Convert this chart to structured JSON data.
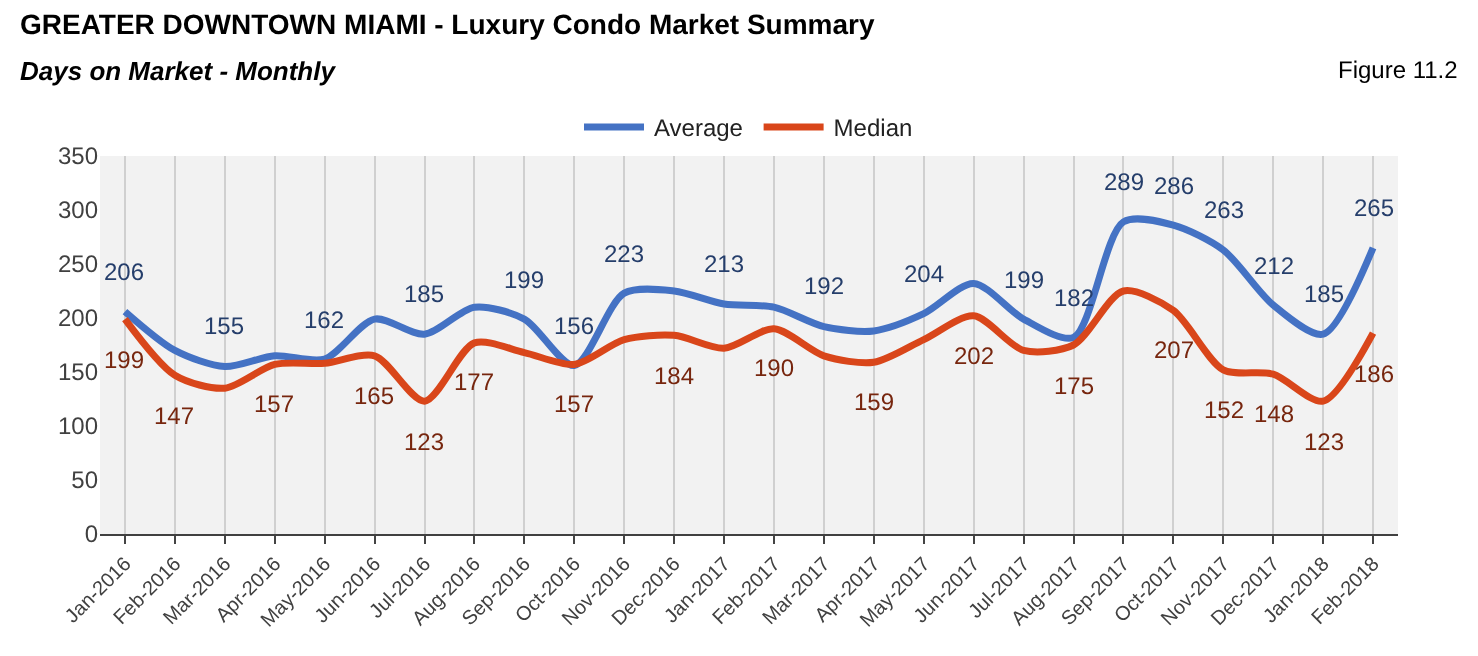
{
  "chart_data": {
    "type": "line",
    "title": "GREATER DOWNTOWN MIAMI - Luxury Condo Market Summary",
    "subtitle": "Days on Market - Monthly",
    "annotations": [
      "Figure 11.2"
    ],
    "categories": [
      "Jan-2016",
      "Feb-2016",
      "Mar-2016",
      "Apr-2016",
      "May-2016",
      "Jun-2016",
      "Jul-2016",
      "Aug-2016",
      "Sep-2016",
      "Oct-2016",
      "Nov-2016",
      "Dec-2016",
      "Jan-2017",
      "Feb-2017",
      "Mar-2017",
      "Apr-2017",
      "May-2017",
      "Jun-2017",
      "Jul-2017",
      "Aug-2017",
      "Sep-2017",
      "Oct-2017",
      "Nov-2017",
      "Dec-2017",
      "Jan-2018",
      "Feb-2018"
    ],
    "series": [
      {
        "name": "Average",
        "color": "#4472c4",
        "values": [
          206,
          170,
          155,
          165,
          162,
          199,
          185,
          210,
          199,
          156,
          223,
          225,
          213,
          210,
          192,
          188,
          204,
          232,
          199,
          182,
          289,
          286,
          263,
          212,
          185,
          265
        ],
        "value_labels": [
          "206",
          null,
          "155",
          null,
          "162",
          null,
          "185",
          null,
          "199",
          "156",
          "223",
          null,
          "213",
          null,
          "192",
          null,
          "204",
          null,
          "199",
          "182",
          "289",
          "286",
          "263",
          "212",
          "185",
          "265"
        ]
      },
      {
        "name": "Median",
        "color": "#d9461a",
        "values": [
          199,
          147,
          135,
          157,
          158,
          165,
          123,
          177,
          168,
          157,
          180,
          184,
          172,
          190,
          165,
          159,
          180,
          202,
          170,
          175,
          225,
          207,
          152,
          148,
          123,
          186
        ],
        "value_labels": [
          "199",
          "147",
          null,
          "157",
          null,
          "165",
          "123",
          "177",
          null,
          "157",
          null,
          "184",
          null,
          "190",
          null,
          "159",
          null,
          "202",
          null,
          "175",
          null,
          "207",
          "152",
          "148",
          "123",
          "186"
        ]
      }
    ],
    "ylim": [
      0,
      350
    ],
    "yticks": [
      0,
      50,
      100,
      150,
      200,
      250,
      300,
      350
    ],
    "grid": "x",
    "legend": "top",
    "marker": "none",
    "line_style": "solid"
  }
}
